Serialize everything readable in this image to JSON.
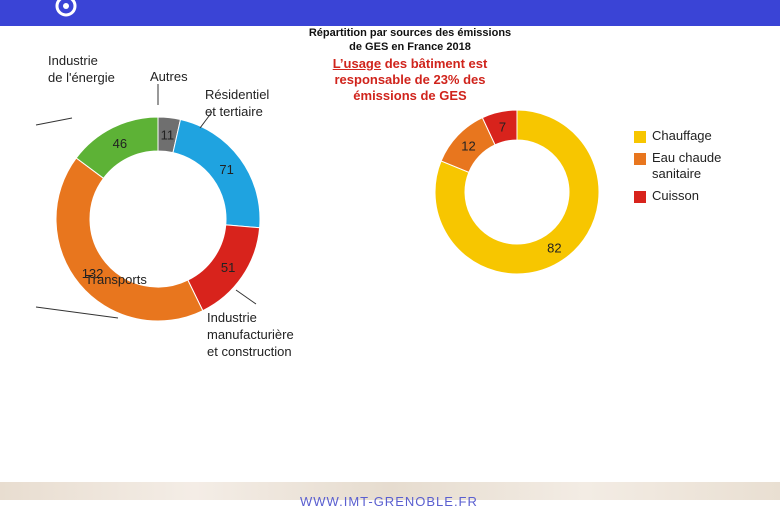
{
  "header": {
    "title_line1": "Répartition par sources  des émissions",
    "title_line2": "de GES  en France 2018",
    "highlight_underlined": "L’usage",
    "highlight_rest_line1": " des bâtiment est",
    "highlight_line2": "responsable de 23% des",
    "highlight_line3": "émissions de GES"
  },
  "footer": {
    "text": "WWW.IMT-GRENOBLE.FR"
  },
  "chart_data": [
    {
      "type": "pie",
      "variant": "donut",
      "slices": [
        {
          "label": "Autres",
          "value": 11,
          "color": "#6f6f6f"
        },
        {
          "label": "Résidentiel et tertiaire",
          "value": 71,
          "color": "#1fa3e0"
        },
        {
          "label": "Industrie manufacturière et construction",
          "value": 51,
          "color": "#d8231c"
        },
        {
          "label": "Transports",
          "value": 132,
          "color": "#e8761e"
        },
        {
          "label": "Industrie de l'énergie",
          "value": 46,
          "color": "#5db236"
        }
      ],
      "labels": {
        "autres": "Autres",
        "residentiel_1": "Résidentiel",
        "residentiel_2": "et tertiaire",
        "industrie_manu_1": "Industrie",
        "industrie_manu_2": "manufacturière",
        "industrie_manu_3": "et construction",
        "transports": "Transports",
        "energie_1": "Industrie",
        "energie_2": "de l'énergie"
      }
    },
    {
      "type": "pie",
      "variant": "donut",
      "slices": [
        {
          "label": "Chauffage",
          "value": 82,
          "color": "#f7c600"
        },
        {
          "label": "Eau chaude sanitaire",
          "value": 12,
          "color": "#e8761e"
        },
        {
          "label": "Cuisson",
          "value": 7,
          "color": "#d8231c"
        }
      ],
      "legend": {
        "position": "right",
        "items": [
          {
            "label": "Chauffage",
            "color": "#f7c600"
          },
          {
            "label_line1": "Eau chaude",
            "label_line2": "sanitaire",
            "color": "#e8761e"
          },
          {
            "label": "Cuisson",
            "color": "#d8231c"
          }
        ]
      }
    }
  ]
}
